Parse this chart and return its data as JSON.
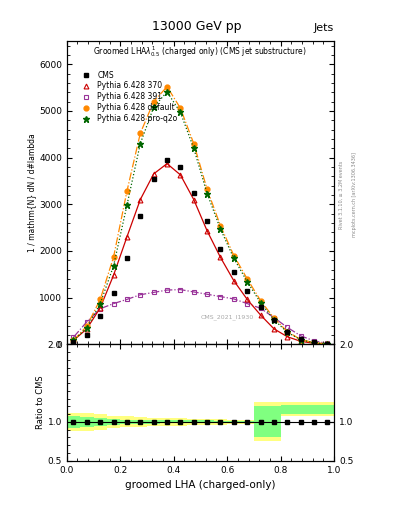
{
  "title_top": "13000 GeV pp",
  "title_right": "Jets",
  "plot_title": "Groomed LHA$\\lambda^1_{0.5}$ (charged only) (CMS jet substructure)",
  "xlabel": "groomed LHA (charged-only)",
  "ylabel_ratio": "Ratio to CMS",
  "watermark": "CMS_2021_I1930",
  "rivet_text": "Rivet 3.1.10, ≥ 3.2M events",
  "arxiv_text": "mcplots.cern.ch [arXiv:1306.3436]",
  "x_bins": [
    0.0,
    0.05,
    0.1,
    0.15,
    0.2,
    0.25,
    0.3,
    0.35,
    0.4,
    0.45,
    0.5,
    0.55,
    0.6,
    0.65,
    0.7,
    0.75,
    0.8,
    0.85,
    0.9,
    0.95,
    1.0
  ],
  "cms_y": [
    50,
    200,
    600,
    1100,
    1850,
    2750,
    3550,
    3950,
    3800,
    3250,
    2650,
    2050,
    1550,
    1150,
    800,
    520,
    260,
    120,
    40,
    8
  ],
  "p370_y": [
    80,
    330,
    780,
    1480,
    2300,
    3100,
    3650,
    3870,
    3630,
    3100,
    2430,
    1860,
    1360,
    960,
    625,
    330,
    160,
    62,
    18,
    4
  ],
  "p391_y": [
    150,
    480,
    760,
    870,
    960,
    1060,
    1110,
    1160,
    1170,
    1120,
    1070,
    1020,
    970,
    870,
    770,
    570,
    360,
    180,
    70,
    18
  ],
  "pdef_y": [
    80,
    390,
    960,
    1870,
    3280,
    4520,
    5200,
    5520,
    5060,
    4300,
    3320,
    2540,
    1900,
    1400,
    935,
    560,
    270,
    100,
    32,
    7
  ],
  "pproq_y": [
    80,
    350,
    870,
    1680,
    2980,
    4300,
    5080,
    5410,
    4970,
    4200,
    3230,
    2470,
    1840,
    1340,
    890,
    525,
    255,
    95,
    30,
    6
  ],
  "x_edges": [
    0.0,
    0.05,
    0.1,
    0.15,
    0.2,
    0.25,
    0.3,
    0.35,
    0.4,
    0.45,
    0.5,
    0.55,
    0.6,
    0.65,
    0.7,
    0.75,
    0.8,
    0.85,
    0.9,
    0.95,
    1.0
  ],
  "yl_lo": [
    0.88,
    0.88,
    0.9,
    0.92,
    0.93,
    0.94,
    0.95,
    0.95,
    0.95,
    0.96,
    0.96,
    0.96,
    0.97,
    0.97,
    0.75,
    0.75,
    1.08,
    1.08,
    1.08,
    1.08
  ],
  "yl_hi": [
    1.12,
    1.12,
    1.1,
    1.08,
    1.07,
    1.06,
    1.05,
    1.05,
    1.05,
    1.04,
    1.04,
    1.04,
    1.03,
    1.03,
    1.25,
    1.25,
    1.25,
    1.25,
    1.25,
    1.25
  ],
  "yg_lo": [
    0.92,
    0.94,
    0.95,
    0.96,
    0.97,
    0.97,
    0.97,
    0.98,
    0.98,
    0.98,
    0.98,
    0.99,
    0.99,
    0.99,
    0.8,
    0.8,
    1.1,
    1.1,
    1.1,
    1.1
  ],
  "yg_hi": [
    1.08,
    1.06,
    1.05,
    1.04,
    1.03,
    1.03,
    1.03,
    1.02,
    1.02,
    1.02,
    1.02,
    1.01,
    1.01,
    1.01,
    1.2,
    1.2,
    1.22,
    1.22,
    1.22,
    1.22
  ],
  "color_cms": "#000000",
  "color_370": "#cc0000",
  "color_391": "#993399",
  "color_default": "#ff8800",
  "color_proq2o": "#006600",
  "color_yellow": "#ffff80",
  "color_green": "#80ff80",
  "ylim_main": [
    0,
    6500
  ],
  "ylim_ratio": [
    0.5,
    2.0
  ],
  "background": "#ffffff"
}
